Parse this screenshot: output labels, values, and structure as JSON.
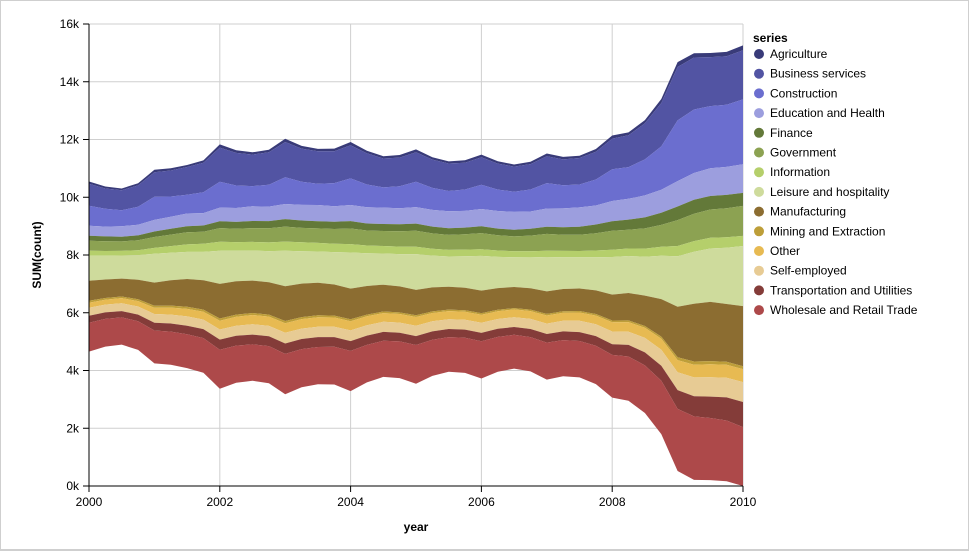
{
  "chart_data": {
    "type": "area",
    "subtype": "streamgraph",
    "title": "",
    "xlabel": "year",
    "ylabel": "SUM(count)",
    "xlim": [
      2000,
      2010
    ],
    "ylim": [
      0,
      16000
    ],
    "grid": true,
    "x_ticks": [
      "2000",
      "2002",
      "2004",
      "2006",
      "2008",
      "2010"
    ],
    "y_ticks": [
      "0k",
      "2k",
      "4k",
      "6k",
      "8k",
      "10k",
      "12k",
      "14k",
      "16k"
    ],
    "stack_offset": "center",
    "stack_center": 7600,
    "legend": {
      "title": "series",
      "position": "right"
    },
    "x": [
      2000.0,
      2000.25,
      2000.5,
      2000.75,
      2001.0,
      2001.25,
      2001.5,
      2001.75,
      2002.0,
      2002.25,
      2002.5,
      2002.75,
      2003.0,
      2003.25,
      2003.5,
      2003.75,
      2004.0,
      2004.25,
      2004.5,
      2004.75,
      2005.0,
      2005.25,
      2005.5,
      2005.75,
      2006.0,
      2006.25,
      2006.5,
      2006.75,
      2007.0,
      2007.25,
      2007.5,
      2007.75,
      2008.0,
      2008.25,
      2008.5,
      2008.75,
      2009.0,
      2009.25,
      2009.5,
      2009.75,
      2010.0
    ],
    "series": [
      {
        "name": "Agriculture",
        "color": "#393b79",
        "values": [
          80,
          70,
          60,
          75,
          90,
          75,
          70,
          85,
          110,
          90,
          80,
          90,
          110,
          95,
          85,
          95,
          110,
          90,
          80,
          90,
          100,
          85,
          75,
          85,
          95,
          80,
          70,
          85,
          95,
          85,
          80,
          95,
          110,
          100,
          110,
          140,
          170,
          150,
          140,
          150,
          170
        ]
      },
      {
        "name": "Business services",
        "color": "#5254a3",
        "values": [
          760,
          700,
          690,
          740,
          850,
          900,
          960,
          1020,
          1180,
          1130,
          1090,
          1120,
          1220,
          1150,
          1120,
          1100,
          1150,
          1080,
          1000,
          990,
          1020,
          980,
          950,
          930,
          950,
          900,
          870,
          880,
          930,
          900,
          920,
          960,
          1060,
          1100,
          1250,
          1500,
          1850,
          1800,
          1700,
          1680,
          1700
        ]
      },
      {
        "name": "Construction",
        "color": "#6b6ecf",
        "values": [
          690,
          620,
          560,
          620,
          800,
          700,
          650,
          720,
          900,
          780,
          700,
          760,
          930,
          800,
          740,
          800,
          920,
          790,
          700,
          760,
          880,
          760,
          700,
          740,
          840,
          740,
          700,
          760,
          880,
          800,
          790,
          900,
          1100,
          1100,
          1250,
          1500,
          2100,
          2200,
          2150,
          2150,
          2250
        ]
      },
      {
        "name": "Education and Health",
        "color": "#9c9ede",
        "values": [
          350,
          340,
          360,
          370,
          400,
          420,
          440,
          430,
          470,
          480,
          510,
          500,
          520,
          540,
          560,
          540,
          560,
          560,
          570,
          560,
          570,
          580,
          590,
          580,
          600,
          610,
          620,
          600,
          630,
          650,
          670,
          660,
          700,
          720,
          760,
          800,
          880,
          930,
          960,
          970,
          990
        ]
      },
      {
        "name": "Finance",
        "color": "#637939",
        "values": [
          170,
          165,
          160,
          170,
          190,
          200,
          210,
          215,
          240,
          240,
          245,
          250,
          260,
          255,
          250,
          250,
          255,
          245,
          240,
          240,
          245,
          235,
          230,
          230,
          235,
          230,
          230,
          235,
          250,
          260,
          280,
          300,
          330,
          350,
          380,
          420,
          470,
          480,
          470,
          460,
          450
        ]
      },
      {
        "name": "Government",
        "color": "#8ca252",
        "values": [
          350,
          340,
          330,
          345,
          380,
          400,
          420,
          420,
          470,
          460,
          480,
          490,
          520,
          500,
          500,
          510,
          540,
          520,
          520,
          530,
          560,
          530,
          520,
          530,
          560,
          530,
          510,
          540,
          580,
          560,
          560,
          600,
          660,
          650,
          700,
          760,
          900,
          950,
          980,
          1010,
          1040
        ]
      },
      {
        "name": "Information",
        "color": "#b5cf6b",
        "values": [
          170,
          165,
          160,
          170,
          200,
          230,
          260,
          280,
          310,
          300,
          300,
          300,
          320,
          310,
          300,
          290,
          290,
          270,
          260,
          260,
          250,
          240,
          230,
          230,
          230,
          220,
          210,
          215,
          220,
          220,
          220,
          230,
          250,
          260,
          280,
          310,
          350,
          370,
          370,
          360,
          350
        ]
      },
      {
        "name": "Leisure and hospitality",
        "color": "#cedb9c",
        "values": [
          870,
          820,
          800,
          850,
          1000,
          950,
          940,
          980,
          1150,
          1060,
          1040,
          1080,
          1230,
          1120,
          1080,
          1120,
          1250,
          1130,
          1080,
          1120,
          1240,
          1100,
          1050,
          1090,
          1200,
          1080,
          1030,
          1070,
          1190,
          1100,
          1080,
          1150,
          1300,
          1280,
          1350,
          1500,
          1750,
          1800,
          1850,
          1950,
          2080
        ]
      },
      {
        "name": "Manufacturing",
        "color": "#8c6d31",
        "values": [
          690,
          640,
          620,
          680,
          800,
          880,
          960,
          1020,
          1200,
          1150,
          1120,
          1120,
          1200,
          1160,
          1130,
          1080,
          1060,
          990,
          930,
          900,
          880,
          830,
          790,
          780,
          780,
          750,
          730,
          740,
          780,
          770,
          780,
          820,
          900,
          950,
          1050,
          1300,
          1750,
          2000,
          2050,
          2000,
          2080
        ]
      },
      {
        "name": "Mining and Extraction",
        "color": "#bd9e39",
        "values": [
          70,
          60,
          55,
          60,
          70,
          70,
          75,
          75,
          80,
          75,
          70,
          70,
          80,
          70,
          65,
          65,
          70,
          60,
          55,
          55,
          60,
          55,
          50,
          50,
          55,
          50,
          45,
          50,
          55,
          50,
          50,
          55,
          60,
          60,
          65,
          75,
          100,
          110,
          110,
          105,
          100
        ]
      },
      {
        "name": "Other",
        "color": "#e7ba52",
        "values": [
          170,
          170,
          180,
          190,
          220,
          240,
          260,
          270,
          300,
          310,
          320,
          320,
          330,
          330,
          330,
          320,
          320,
          310,
          300,
          300,
          300,
          290,
          280,
          280,
          280,
          270,
          270,
          270,
          280,
          280,
          290,
          300,
          320,
          330,
          350,
          380,
          420,
          440,
          450,
          450,
          450
        ]
      },
      {
        "name": "Self-employed",
        "color": "#e7cb94",
        "values": [
          280,
          270,
          270,
          280,
          300,
          310,
          320,
          330,
          350,
          350,
          360,
          360,
          370,
          360,
          360,
          360,
          370,
          360,
          350,
          350,
          360,
          350,
          340,
          340,
          350,
          340,
          340,
          350,
          360,
          370,
          390,
          410,
          440,
          460,
          500,
          550,
          620,
          650,
          670,
          680,
          690
        ]
      },
      {
        "name": "Transportation and Utilities",
        "color": "#843c39",
        "values": [
          240,
          225,
          220,
          230,
          270,
          280,
          300,
          310,
          350,
          340,
          340,
          340,
          360,
          350,
          340,
          330,
          340,
          320,
          310,
          300,
          310,
          290,
          280,
          280,
          290,
          280,
          270,
          280,
          300,
          300,
          310,
          330,
          370,
          400,
          450,
          520,
          650,
          700,
          740,
          800,
          870
        ]
      },
      {
        "name": "Wholesale and Retail Trade",
        "color": "#ad494a",
        "values": [
          1000,
          960,
          940,
          990,
          1140,
          1150,
          1170,
          1200,
          1350,
          1290,
          1260,
          1290,
          1400,
          1320,
          1290,
          1310,
          1390,
          1300,
          1250,
          1270,
          1340,
          1250,
          1200,
          1220,
          1290,
          1210,
          1170,
          1190,
          1280,
          1250,
          1260,
          1330,
          1480,
          1530,
          1650,
          1850,
          2150,
          2200,
          2150,
          2100,
          2100
        ]
      }
    ]
  }
}
